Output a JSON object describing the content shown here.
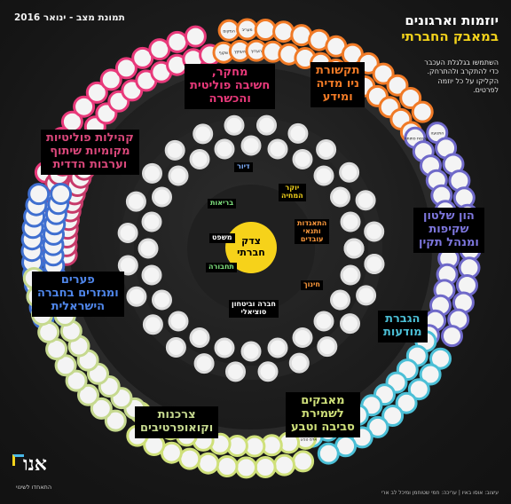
{
  "header": {
    "title_line1": "יוזמות וארגונים",
    "title_line2": "במאבק החברתי",
    "date": "תמונת מצב - ינואר 2016",
    "intro": "השתמשו בגלגלת העכבר כדי להתקרב ולהתרחק. הקליקו על כל יוזמה לפרטים."
  },
  "center": {
    "label": "צדק\nחברתי",
    "color": "#f6d21a"
  },
  "categories": [
    {
      "id": "research",
      "label": "מחקר,\nחשיבה פוליטית\nוהכשרה",
      "color": "#e8397a"
    },
    {
      "id": "media",
      "label": "תקשורת\nניו מדיה\nומידע",
      "color": "#f07a26"
    },
    {
      "id": "communities",
      "label": "קהילות פוליטיות\nמקומיות שיתוף\nוערבות הדדית",
      "color": "#c73a6a"
    },
    {
      "id": "governance",
      "label": "הון שלטון\nשקיפות\nומנהל תקין",
      "color": "#6f69c9"
    },
    {
      "id": "gaps",
      "label": "פערים\nומגזרים בחברה\nהישראלית",
      "color": "#3f6fd0"
    },
    {
      "id": "awareness",
      "label": "הגברת\nמודעות",
      "color": "#4bbfd6"
    },
    {
      "id": "environment",
      "label": "מאבקים\nלשמירת\nסביבה וטבע",
      "color": "#cfe07a"
    },
    {
      "id": "coops",
      "label": "צרכנות\nוקואופרטיבים",
      "color": "#c6d98f"
    }
  ],
  "inner_tags": [
    {
      "id": "housing",
      "label": "דיור",
      "color": "#7fb0ff"
    },
    {
      "id": "cost",
      "label": "יוקר\nהמחיה",
      "color": "#f2d21b"
    },
    {
      "id": "health",
      "label": "בריאות",
      "color": "#7fe27f"
    },
    {
      "id": "employment",
      "label": "התאגדות\nותנאי\nעובדים",
      "color": "#ff9a3c"
    },
    {
      "id": "law",
      "label": "משפט",
      "color": "#ffffff"
    },
    {
      "id": "transport",
      "label": "תחבורה",
      "color": "#7fe27f"
    },
    {
      "id": "education",
      "label": "חינוך",
      "color": "#ff9a3c"
    },
    {
      "id": "welfare",
      "label": "חברה וביטחון\nסוציאלי",
      "color": "#ffffff"
    }
  ],
  "nodes": {
    "research": [
      "מולד",
      "ון ליר",
      "אדוה",
      "מכון",
      "מרחב",
      "מכון",
      "שחרית",
      "",
      "",
      "",
      "",
      "",
      "",
      "",
      "",
      "",
      "",
      "",
      "",
      "",
      "",
      "",
      "",
      "",
      ""
    ],
    "media": [
      "שקוף",
      "המקום",
      "העוקץ",
      "מעריב",
      "הערוץ",
      "",
      "",
      "",
      "",
      "",
      "",
      "",
      "",
      "",
      "",
      "",
      "",
      "",
      "",
      "",
      "",
      "",
      "",
      "",
      "",
      "",
      ""
    ],
    "communities": [
      "",
      "",
      "",
      "",
      "",
      "",
      "",
      "",
      "",
      "",
      "",
      "",
      "",
      "",
      "",
      "",
      "",
      "",
      "",
      "",
      "",
      "",
      ""
    ],
    "governance": [
      "כנסת פתוחה",
      "התנועה",
      "",
      "",
      "",
      "",
      "",
      "",
      "",
      "",
      "",
      "",
      "",
      "",
      "",
      "",
      "",
      "",
      "",
      "",
      "",
      "",
      "",
      "",
      "",
      "",
      ""
    ],
    "gaps": [
      "",
      "",
      "",
      "",
      "",
      "",
      "",
      "",
      "",
      "",
      "",
      "",
      "",
      "",
      "",
      "",
      "",
      "",
      "",
      "",
      "",
      "",
      "",
      "",
      ""
    ],
    "awareness": [
      "",
      "",
      "",
      "",
      "",
      "",
      "",
      "",
      "",
      "",
      "",
      "",
      "",
      "",
      "",
      "",
      "",
      "",
      ""
    ],
    "environment": [
      "אדם טבע ודין",
      "",
      "",
      "",
      "",
      "",
      "",
      "",
      "",
      "",
      "",
      "",
      "",
      "",
      "",
      "",
      "",
      "",
      "",
      "",
      ""
    ],
    "coops": [
      "",
      "",
      "",
      "",
      "",
      "",
      "",
      "",
      "",
      "",
      "",
      "",
      "",
      "",
      "",
      "",
      "",
      "",
      "",
      ""
    ],
    "inner": [
      "",
      "",
      "",
      "",
      "",
      "",
      "",
      "",
      "",
      "",
      "",
      "",
      "",
      "",
      "",
      "",
      "",
      "",
      "",
      "",
      "",
      "",
      "",
      "",
      "",
      "",
      "",
      "",
      "",
      "",
      "",
      "",
      "",
      "",
      "",
      "",
      "",
      "",
      "",
      "",
      "",
      "",
      "",
      "",
      "",
      "",
      "",
      "",
      "",
      ""
    ]
  },
  "logo": {
    "word": "אנו",
    "tagline": "התאחדו לשינוי"
  },
  "credits": {
    "text": "עיצוב: אוסו באיו | עריכה: חמי שטוחמן ומיכל לב ארי"
  }
}
